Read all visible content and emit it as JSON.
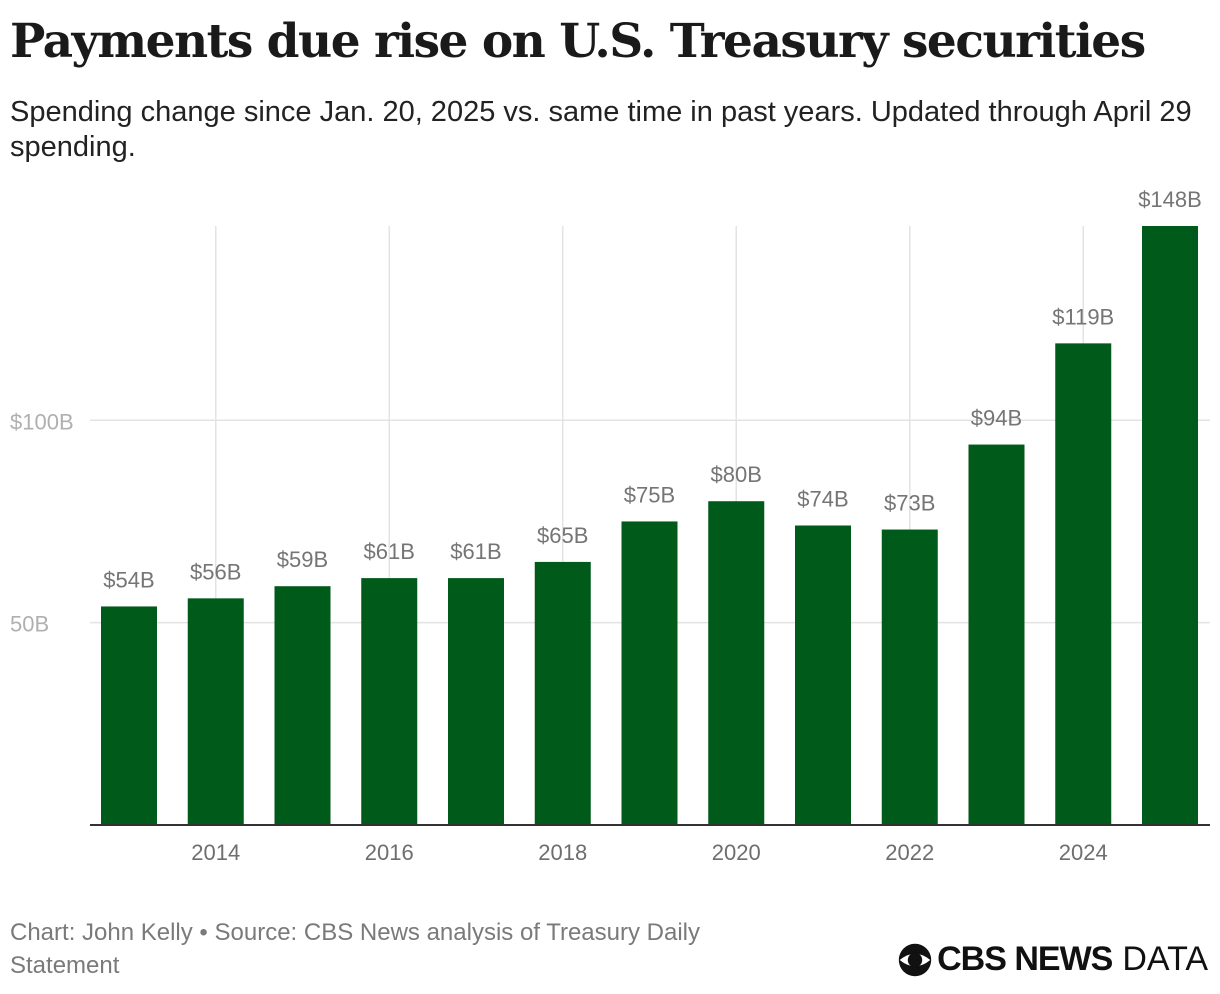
{
  "title": "Payments due rise on U.S. Treasury securities",
  "subtitle": "Spending change since Jan. 20, 2025 vs. same time in past years. Updated through April 29 spending.",
  "footer": {
    "source": "Chart: John Kelly • Source: CBS News analysis of Treasury Daily Statement",
    "brand_bold": "CBS NEWS",
    "brand_light": "DATA"
  },
  "colors": {
    "bar": "#005a19",
    "grid": "#e3e3e3",
    "axis": "#333333",
    "tick_label": "#6e6e6e",
    "y_label": "#b0b0b0",
    "bar_label": "#757575"
  },
  "chart_data": {
    "type": "bar",
    "categories": [
      "2013",
      "2014",
      "2015",
      "2016",
      "2017",
      "2018",
      "2019",
      "2020",
      "2021",
      "2022",
      "2023",
      "2024",
      "2025"
    ],
    "values": [
      54,
      56,
      59,
      61,
      61,
      65,
      75,
      80,
      74,
      73,
      94,
      119,
      148
    ],
    "data_labels": [
      "$54B",
      "$56B",
      "$59B",
      "$61B",
      "$61B",
      "$65B",
      "$75B",
      "$80B",
      "$74B",
      "$73B",
      "$94B",
      "$119B",
      "$148B"
    ],
    "x_tick_labels": [
      "2014",
      "2016",
      "2018",
      "2020",
      "2022",
      "2024"
    ],
    "y_ticks": [
      {
        "value": 50,
        "label": "50B"
      },
      {
        "value": 100,
        "label": "$100B"
      }
    ],
    "ylim": [
      0,
      148
    ],
    "xlabel": "",
    "ylabel": "",
    "grid": true
  }
}
